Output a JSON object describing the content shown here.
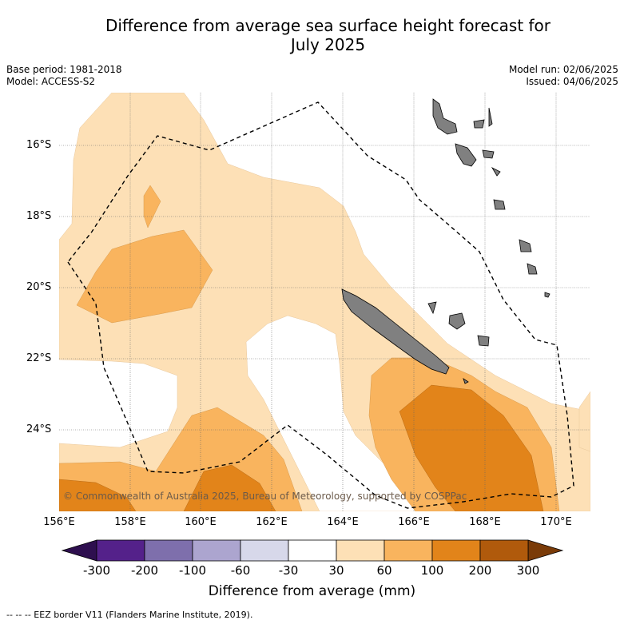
{
  "title_line1": "Difference from average sea surface height forecast for",
  "title_line2": "July 2025",
  "base_period": "Base period: 1981-2018",
  "model": "Model: ACCESS-S2",
  "model_run": "Model run: 02/06/2025",
  "issued": "Issued: 04/06/2025",
  "lat_labels": [
    "16°S",
    "18°S",
    "20°S",
    "22°S",
    "24°S"
  ],
  "lon_labels": [
    "156°E",
    "158°E",
    "160°E",
    "162°E",
    "164°E",
    "166°E",
    "168°E",
    "170°E"
  ],
  "copyright": "© Commonwealth of Australia 2025, Bureau of Meteorology, supported by COSPPac",
  "colorbar": {
    "ticks": [
      "-300",
      "-200",
      "-100",
      "-60",
      "-30",
      "30",
      "60",
      "100",
      "200",
      "300"
    ],
    "colors": [
      "#54218a",
      "#7e6fac",
      "#aca5cf",
      "#d7d8ea",
      "#ffffff",
      "#fde0b6",
      "#f9b45e",
      "#e2841a",
      "#b05a0c"
    ],
    "low_extend": "#2e0f4f",
    "high_extend": "#7a3b08",
    "label": "Difference from average (mm)"
  },
  "footnote": "--  --  -- EEZ border V11 (Flanders Marine Institute, 2019).",
  "land_color": "#808080"
}
